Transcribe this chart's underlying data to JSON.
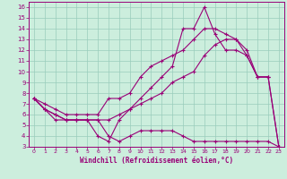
{
  "xlabel": "Windchill (Refroidissement éolien,°C)",
  "background_color": "#cceedd",
  "grid_color": "#99ccbb",
  "line_color": "#990077",
  "xlim": [
    -0.5,
    23.5
  ],
  "ylim": [
    3,
    16.5
  ],
  "xticks": [
    0,
    1,
    2,
    3,
    4,
    5,
    6,
    7,
    8,
    9,
    10,
    11,
    12,
    13,
    14,
    15,
    16,
    17,
    18,
    19,
    20,
    21,
    22,
    23
  ],
  "yticks": [
    3,
    4,
    5,
    6,
    7,
    8,
    9,
    10,
    11,
    12,
    13,
    14,
    15,
    16
  ],
  "series": [
    {
      "x": [
        0,
        1,
        2,
        3,
        4,
        5,
        6,
        7,
        8,
        9,
        10,
        11,
        12,
        13,
        14,
        15,
        16,
        17,
        18,
        19,
        20,
        21,
        22
      ],
      "y": [
        7.5,
        7.0,
        6.5,
        6.0,
        6.0,
        6.0,
        6.0,
        7.5,
        7.5,
        8.0,
        9.5,
        10.5,
        11.0,
        11.5,
        12.0,
        13.0,
        14.0,
        14.0,
        13.5,
        13.0,
        11.5,
        9.5,
        9.5
      ]
    },
    {
      "x": [
        0,
        1,
        2,
        3,
        4,
        5,
        6,
        7,
        8,
        9,
        10,
        11,
        12,
        13,
        14,
        15,
        16,
        17,
        18,
        19,
        20,
        21,
        22,
        23
      ],
      "y": [
        7.5,
        6.5,
        6.0,
        5.5,
        5.5,
        5.5,
        4.0,
        3.5,
        5.5,
        6.5,
        7.5,
        8.5,
        9.5,
        10.5,
        14.0,
        14.0,
        16.0,
        13.5,
        12.0,
        12.0,
        11.5,
        9.5,
        9.5,
        3.0
      ]
    },
    {
      "x": [
        0,
        1,
        2,
        3,
        4,
        5,
        6,
        7,
        8,
        9,
        10,
        11,
        12,
        13,
        14,
        15,
        16,
        17,
        18,
        19,
        20,
        21,
        22,
        23
      ],
      "y": [
        7.5,
        6.5,
        6.0,
        5.5,
        5.5,
        5.5,
        5.5,
        5.5,
        6.0,
        6.5,
        7.0,
        7.5,
        8.0,
        9.0,
        9.5,
        10.0,
        11.5,
        12.5,
        13.0,
        13.0,
        12.0,
        9.5,
        9.5,
        3.0
      ]
    },
    {
      "x": [
        0,
        1,
        2,
        3,
        4,
        5,
        6,
        7,
        8,
        9,
        10,
        11,
        12,
        13,
        14,
        15,
        16,
        17,
        18,
        19,
        20,
        21,
        22,
        23
      ],
      "y": [
        7.5,
        6.5,
        5.5,
        5.5,
        5.5,
        5.5,
        5.5,
        4.0,
        3.5,
        4.0,
        4.5,
        4.5,
        4.5,
        4.5,
        4.0,
        3.5,
        3.5,
        3.5,
        3.5,
        3.5,
        3.5,
        3.5,
        3.5,
        3.0
      ]
    }
  ]
}
